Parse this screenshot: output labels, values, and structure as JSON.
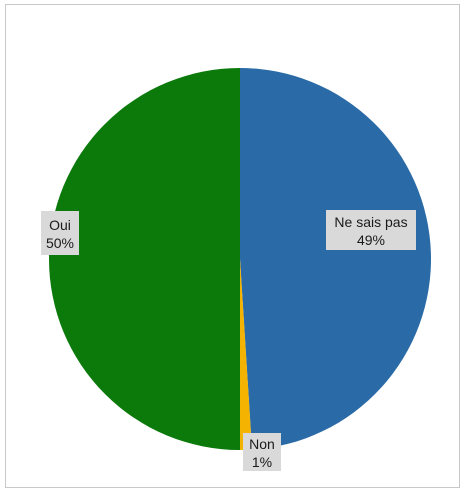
{
  "chart_data": {
    "type": "pie",
    "slices": [
      {
        "label": "Ne sais pas",
        "value": 49,
        "display": "49%",
        "color": "#2a6aa6"
      },
      {
        "label": "Non",
        "value": 1,
        "display": "1%",
        "color": "#f5b301"
      },
      {
        "label": "Oui",
        "value": 50,
        "display": "50%",
        "color": "#0b7a0b"
      }
    ],
    "start_direction": "top",
    "direction": "clockwise",
    "data_labels": "category and percentage"
  }
}
